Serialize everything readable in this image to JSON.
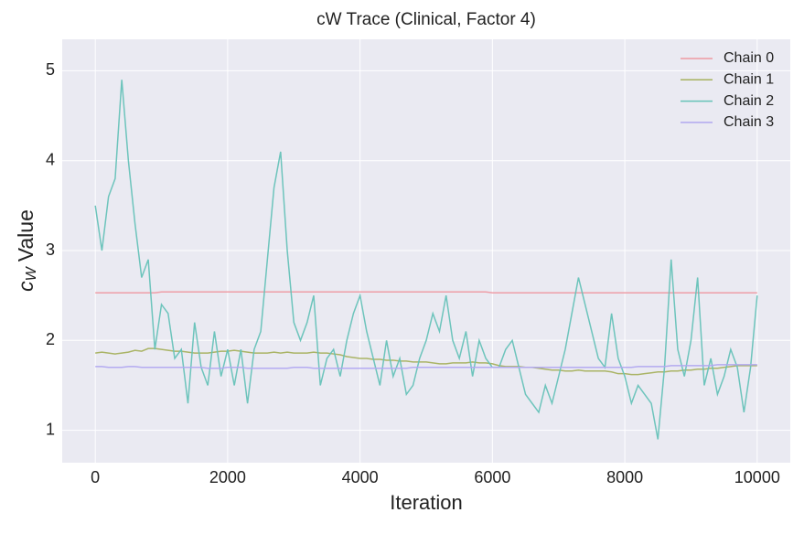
{
  "chart_data": {
    "type": "line",
    "title": "cW Trace (Clinical, Factor 4)",
    "xlabel": "Iteration",
    "ylabel_symbol": "c",
    "ylabel_subscript": "W",
    "ylabel_text": "Value",
    "x": [
      0,
      100,
      200,
      300,
      400,
      500,
      600,
      700,
      800,
      900,
      1000,
      1100,
      1200,
      1300,
      1400,
      1500,
      1600,
      1700,
      1800,
      1900,
      2000,
      2100,
      2200,
      2300,
      2400,
      2500,
      2600,
      2700,
      2800,
      2900,
      3000,
      3100,
      3200,
      3300,
      3400,
      3500,
      3600,
      3700,
      3800,
      3900,
      4000,
      4100,
      4200,
      4300,
      4400,
      4500,
      4600,
      4700,
      4800,
      4900,
      5000,
      5100,
      5200,
      5300,
      5400,
      5500,
      5600,
      5700,
      5800,
      5900,
      6000,
      6100,
      6200,
      6300,
      6400,
      6500,
      6600,
      6700,
      6800,
      6900,
      7000,
      7100,
      7200,
      7300,
      7400,
      7500,
      7600,
      7700,
      7800,
      7900,
      8000,
      8100,
      8200,
      8300,
      8400,
      8500,
      8600,
      8700,
      8800,
      8900,
      9000,
      9100,
      9200,
      9300,
      9400,
      9500,
      9600,
      9700,
      9800,
      9900,
      10000
    ],
    "series": [
      {
        "name": "Chain 0",
        "color": "#ee99a2",
        "values": [
          2.53,
          2.53,
          2.53,
          2.53,
          2.53,
          2.53,
          2.53,
          2.53,
          2.53,
          2.53,
          2.54,
          2.54,
          2.54,
          2.54,
          2.54,
          2.54,
          2.54,
          2.54,
          2.54,
          2.54,
          2.54,
          2.54,
          2.54,
          2.54,
          2.54,
          2.54,
          2.54,
          2.54,
          2.54,
          2.54,
          2.54,
          2.54,
          2.54,
          2.54,
          2.54,
          2.54,
          2.54,
          2.54,
          2.54,
          2.54,
          2.54,
          2.54,
          2.54,
          2.54,
          2.54,
          2.54,
          2.54,
          2.54,
          2.54,
          2.54,
          2.54,
          2.54,
          2.54,
          2.54,
          2.54,
          2.54,
          2.54,
          2.54,
          2.54,
          2.54,
          2.53,
          2.53,
          2.53,
          2.53,
          2.53,
          2.53,
          2.53,
          2.53,
          2.53,
          2.53,
          2.53,
          2.53,
          2.53,
          2.53,
          2.53,
          2.53,
          2.53,
          2.53,
          2.53,
          2.53,
          2.53,
          2.53,
          2.53,
          2.53,
          2.53,
          2.53,
          2.53,
          2.53,
          2.53,
          2.53,
          2.53,
          2.53,
          2.53,
          2.53,
          2.53,
          2.53,
          2.53,
          2.53,
          2.53,
          2.53,
          2.53
        ]
      },
      {
        "name": "Chain 1",
        "color": "#a6b15e",
        "values": [
          1.86,
          1.87,
          1.86,
          1.85,
          1.86,
          1.87,
          1.89,
          1.88,
          1.91,
          1.91,
          1.9,
          1.89,
          1.88,
          1.88,
          1.87,
          1.86,
          1.86,
          1.86,
          1.87,
          1.88,
          1.88,
          1.89,
          1.88,
          1.87,
          1.86,
          1.86,
          1.86,
          1.87,
          1.86,
          1.87,
          1.86,
          1.86,
          1.86,
          1.87,
          1.86,
          1.86,
          1.85,
          1.84,
          1.82,
          1.81,
          1.8,
          1.8,
          1.79,
          1.79,
          1.78,
          1.78,
          1.77,
          1.77,
          1.76,
          1.76,
          1.76,
          1.75,
          1.74,
          1.74,
          1.75,
          1.75,
          1.75,
          1.76,
          1.75,
          1.75,
          1.74,
          1.72,
          1.71,
          1.71,
          1.71,
          1.7,
          1.7,
          1.69,
          1.68,
          1.67,
          1.67,
          1.66,
          1.66,
          1.67,
          1.66,
          1.66,
          1.66,
          1.66,
          1.65,
          1.63,
          1.63,
          1.62,
          1.62,
          1.63,
          1.64,
          1.65,
          1.65,
          1.66,
          1.66,
          1.67,
          1.67,
          1.68,
          1.68,
          1.69,
          1.69,
          1.7,
          1.71,
          1.72,
          1.72,
          1.72,
          1.72
        ]
      },
      {
        "name": "Chain 2",
        "color": "#66c2b8",
        "values": [
          3.5,
          3.0,
          3.6,
          3.8,
          4.9,
          4.0,
          3.3,
          2.7,
          2.9,
          1.9,
          2.4,
          2.3,
          1.8,
          1.9,
          1.3,
          2.2,
          1.7,
          1.5,
          2.1,
          1.6,
          1.9,
          1.5,
          1.9,
          1.3,
          1.9,
          2.1,
          2.9,
          3.7,
          4.1,
          3.0,
          2.2,
          2.0,
          2.2,
          2.5,
          1.5,
          1.8,
          1.9,
          1.6,
          2.0,
          2.3,
          2.5,
          2.1,
          1.8,
          1.5,
          2.0,
          1.6,
          1.8,
          1.4,
          1.5,
          1.8,
          2.0,
          2.3,
          2.1,
          2.5,
          2.0,
          1.8,
          2.1,
          1.6,
          2.0,
          1.8,
          1.7,
          1.7,
          1.9,
          2.0,
          1.7,
          1.4,
          1.3,
          1.2,
          1.5,
          1.3,
          1.6,
          1.9,
          2.3,
          2.7,
          2.4,
          2.1,
          1.8,
          1.7,
          2.3,
          1.8,
          1.6,
          1.3,
          1.5,
          1.4,
          1.3,
          0.9,
          1.7,
          2.9,
          1.9,
          1.6,
          2.0,
          2.7,
          1.5,
          1.8,
          1.4,
          1.6,
          1.9,
          1.7,
          1.2,
          1.7,
          2.5
        ]
      },
      {
        "name": "Chain 3",
        "color": "#b1a8f0",
        "values": [
          1.71,
          1.71,
          1.7,
          1.7,
          1.7,
          1.71,
          1.71,
          1.7,
          1.7,
          1.7,
          1.7,
          1.7,
          1.7,
          1.7,
          1.7,
          1.7,
          1.7,
          1.69,
          1.69,
          1.69,
          1.7,
          1.7,
          1.7,
          1.69,
          1.69,
          1.69,
          1.69,
          1.69,
          1.69,
          1.69,
          1.7,
          1.7,
          1.7,
          1.69,
          1.69,
          1.69,
          1.69,
          1.69,
          1.69,
          1.69,
          1.69,
          1.69,
          1.69,
          1.69,
          1.69,
          1.69,
          1.69,
          1.69,
          1.7,
          1.7,
          1.7,
          1.7,
          1.7,
          1.7,
          1.7,
          1.7,
          1.7,
          1.7,
          1.7,
          1.7,
          1.7,
          1.7,
          1.7,
          1.7,
          1.7,
          1.7,
          1.7,
          1.7,
          1.7,
          1.7,
          1.7,
          1.7,
          1.7,
          1.7,
          1.7,
          1.7,
          1.7,
          1.7,
          1.7,
          1.7,
          1.7,
          1.7,
          1.71,
          1.71,
          1.71,
          1.71,
          1.71,
          1.72,
          1.72,
          1.72,
          1.72,
          1.72,
          1.72,
          1.72,
          1.73,
          1.73,
          1.73,
          1.73,
          1.73,
          1.73,
          1.73
        ]
      }
    ],
    "xlim": [
      -500,
      10500
    ],
    "ylim": [
      0.64,
      5.35
    ],
    "xticks": [
      0,
      2000,
      4000,
      6000,
      8000,
      10000
    ],
    "yticks": [
      1,
      2,
      3,
      4,
      5
    ],
    "grid": true,
    "legend": "upper right"
  }
}
